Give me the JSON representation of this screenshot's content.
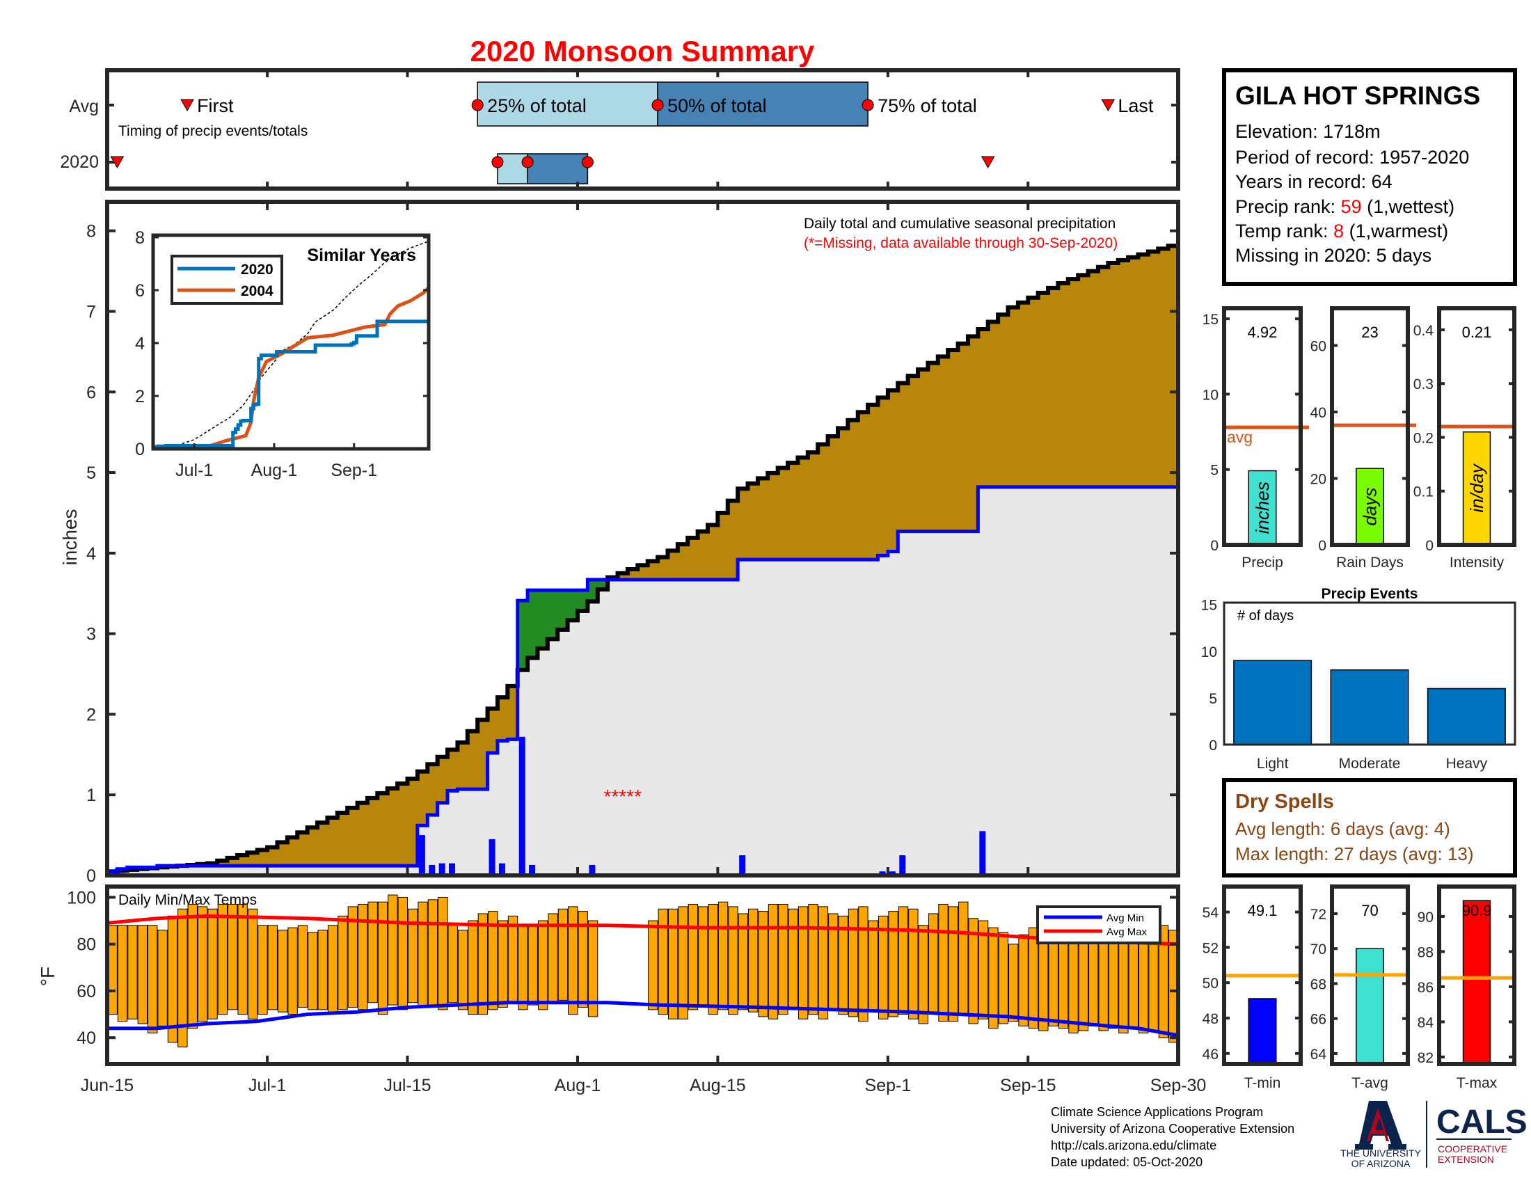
{
  "title": "2020 Monsoon Summary",
  "colors": {
    "title": "#FF0000",
    "avg_fill": "#B8860B",
    "green_fill": "#228B22",
    "grey_fill": "#E8E8E8",
    "obs_line": "#0000FF",
    "q1_box": "#ADD8E6",
    "q2_box": "#4682B4",
    "temp_bar": "#FFA500",
    "avg_line": "#D95319",
    "precip_events_bar": "#0072BD",
    "dry_spell_text": "#8B4513"
  },
  "timing": {
    "row_labels": [
      "Avg",
      "2020"
    ],
    "subtitle": "Timing of precip events/totals",
    "first_label": "First",
    "last_label": "Last",
    "q25_label": "25% of total",
    "q50_label": "50% of total",
    "q75_label": "75% of total",
    "avg": {
      "first": 8,
      "q25": 37,
      "q50": 55,
      "q75": 76,
      "last": 100
    },
    "year": {
      "first": 1,
      "q25": 39,
      "q50": 42,
      "q75": 48,
      "last": 88
    }
  },
  "station": {
    "name": "GILA HOT SPRINGS",
    "elevation": "Elevation: 1718m",
    "period": "Period of record: 1957-2020",
    "years": "Years in record: 64",
    "precip_rank_label": "Precip rank: ",
    "precip_rank": "59",
    "precip_rank_note": " (1,wettest)",
    "temp_rank_label": "Temp rank: ",
    "temp_rank": "8",
    "temp_rank_note": " (1,warmest)",
    "missing": "Missing in 2020: 5 days"
  },
  "chart_data": [
    {
      "type": "area",
      "name": "precip-main",
      "title": "Daily total and cumulative seasonal precipitation",
      "note": "(*=Missing, data available through 30-Sep-2020)",
      "ylabel": "inches",
      "ylim": [
        0,
        8.36
      ],
      "yticks": [
        0,
        1,
        2,
        3,
        4,
        5,
        6,
        7,
        8
      ],
      "x_unit": "days since Jun-15",
      "xlim": [
        0,
        107
      ],
      "xticks": [
        {
          "d": 0,
          "label": "Jun-15"
        },
        {
          "d": 16,
          "label": "Jul-1"
        },
        {
          "d": 30,
          "label": "Jul-15"
        },
        {
          "d": 47,
          "label": "Aug-1"
        },
        {
          "d": 61,
          "label": "Aug-15"
        },
        {
          "d": 78,
          "label": "Sep-1"
        },
        {
          "d": 92,
          "label": "Sep-15"
        },
        {
          "d": 107,
          "label": "Sep-30"
        }
      ],
      "daily_precip_2020": {
        "0": 0.05,
        "1": 0.03,
        "2": 0.02,
        "5": 0.02,
        "31": 0.5,
        "32": 0.13,
        "33": 0.15,
        "34": 0.15,
        "35": 0.02,
        "38": 0.45,
        "39": 0.15,
        "40": 0.02,
        "41": 1.72,
        "42": 0.13,
        "48": 0.13,
        "63": 0.25,
        "77": 0.05,
        "78": 0.05,
        "79": 0.25,
        "87": 0.55
      },
      "avg_cumulative": [
        [
          0,
          0.05
        ],
        [
          10,
          0.15
        ],
        [
          16,
          0.35
        ],
        [
          25,
          0.9
        ],
        [
          30,
          1.2
        ],
        [
          35,
          1.65
        ],
        [
          40,
          2.35
        ],
        [
          41,
          2.55
        ],
        [
          42,
          2.7
        ],
        [
          48,
          3.4
        ],
        [
          50,
          3.7
        ],
        [
          55,
          3.95
        ],
        [
          60,
          4.35
        ],
        [
          63,
          4.8
        ],
        [
          70,
          5.25
        ],
        [
          75,
          5.75
        ],
        [
          80,
          6.2
        ],
        [
          85,
          6.6
        ],
        [
          90,
          7.05
        ],
        [
          95,
          7.35
        ],
        [
          100,
          7.6
        ],
        [
          107,
          7.85
        ]
      ],
      "missing_marker": "*****",
      "missing_days": [
        49,
        50,
        51,
        52,
        53
      ]
    },
    {
      "type": "line",
      "name": "similar-years",
      "title": "Similar Years",
      "ylim": [
        0,
        8
      ],
      "yticks": [
        0,
        2,
        4,
        6,
        8
      ],
      "xticks": [
        {
          "d": 16,
          "label": "Jul-1"
        },
        {
          "d": 47,
          "label": "Aug-1"
        },
        {
          "d": 78,
          "label": "Sep-1"
        }
      ],
      "series": [
        {
          "name": "2020",
          "color": "#0072BD",
          "source": "2020 cumulative"
        },
        {
          "name": "2004",
          "color": "#D95319",
          "points": [
            [
              0,
              0
            ],
            [
              20,
              0.05
            ],
            [
              28,
              0.3
            ],
            [
              36,
              0.5
            ],
            [
              38,
              1.0
            ],
            [
              39,
              1.8
            ],
            [
              41,
              2.7
            ],
            [
              44,
              3.3
            ],
            [
              50,
              3.6
            ],
            [
              55,
              3.9
            ],
            [
              60,
              4.2
            ],
            [
              70,
              4.3
            ],
            [
              78,
              4.5
            ],
            [
              82,
              4.6
            ],
            [
              90,
              4.7
            ],
            [
              92,
              5.1
            ],
            [
              95,
              5.4
            ],
            [
              100,
              5.6
            ],
            [
              105,
              5.9
            ],
            [
              107,
              6.1
            ]
          ]
        },
        {
          "name": "avg",
          "color": "#000000",
          "dashed": true,
          "source": "avg cumulative"
        }
      ]
    },
    {
      "type": "bar",
      "name": "daily-temps",
      "title": "Daily Min/Max Temps",
      "ylabel": "°F",
      "ylim": [
        28.75,
        104.6
      ],
      "yticks": [
        40,
        60,
        80,
        100
      ],
      "max": [
        88,
        88,
        88,
        88,
        88,
        86,
        92,
        95,
        97,
        96,
        95,
        97,
        97,
        97,
        95,
        88,
        88,
        86,
        87,
        88,
        85,
        86,
        88,
        92,
        96,
        97,
        98,
        98,
        101,
        100,
        95,
        98,
        99,
        100,
        88,
        86,
        90,
        93,
        94,
        90,
        92,
        88,
        88,
        90,
        93,
        95,
        96,
        94,
        90,
        null,
        null,
        null,
        null,
        null,
        90,
        95,
        95,
        96,
        97,
        96,
        97,
        98,
        96,
        93,
        95,
        94,
        97,
        97,
        95,
        96,
        97,
        96,
        93,
        92,
        95,
        96,
        90,
        92,
        94,
        96,
        95,
        88,
        93,
        97,
        96,
        98,
        91,
        90,
        87,
        85,
        80,
        84,
        87,
        89,
        86,
        84,
        86,
        83,
        88,
        88,
        86,
        84,
        85,
        86,
        88,
        88,
        86,
        86
      ],
      "min": [
        50,
        47,
        48,
        46,
        42,
        45,
        38,
        36,
        44,
        47,
        48,
        50,
        52,
        50,
        48,
        50,
        52,
        51,
        50,
        53,
        52,
        52,
        50,
        52,
        53,
        52,
        55,
        50,
        54,
        52,
        55,
        53,
        54,
        52,
        55,
        52,
        50,
        50,
        52,
        53,
        55,
        52,
        54,
        52,
        55,
        56,
        50,
        53,
        49,
        null,
        null,
        null,
        null,
        null,
        52,
        50,
        48,
        48,
        52,
        53,
        50,
        52,
        50,
        52,
        51,
        49,
        48,
        50,
        52,
        48,
        50,
        48,
        52,
        50,
        49,
        47,
        52,
        48,
        49,
        50,
        48,
        46,
        50,
        47,
        47,
        50,
        46,
        48,
        44,
        46,
        47,
        45,
        44,
        43,
        45,
        44,
        42,
        43,
        45,
        43,
        44,
        42,
        44,
        42,
        43,
        40,
        38,
        34
      ],
      "legend": [
        {
          "name": "Avg Min",
          "color": "#0000FF",
          "points": [
            [
              0,
              44
            ],
            [
              5,
              44
            ],
            [
              10,
              46
            ],
            [
              15,
              47
            ],
            [
              20,
              50
            ],
            [
              25,
              51
            ],
            [
              30,
              53
            ],
            [
              40,
              55
            ],
            [
              50,
              55
            ],
            [
              55,
              54
            ],
            [
              65,
              53
            ],
            [
              80,
              51
            ],
            [
              90,
              49
            ],
            [
              95,
              47
            ],
            [
              100,
              45
            ],
            [
              103,
              44
            ],
            [
              107,
              41
            ]
          ]
        },
        {
          "name": "Avg Max",
          "color": "#FF0000",
          "points": [
            [
              0,
              89
            ],
            [
              5,
              91
            ],
            [
              10,
              92
            ],
            [
              20,
              91
            ],
            [
              30,
              89
            ],
            [
              40,
              88
            ],
            [
              50,
              88
            ],
            [
              60,
              87
            ],
            [
              70,
              87
            ],
            [
              80,
              86
            ],
            [
              85,
              85
            ],
            [
              95,
              82
            ],
            [
              100,
              81
            ],
            [
              107,
              80
            ]
          ]
        }
      ]
    },
    {
      "type": "bar",
      "name": "precip-total",
      "label": "Precip",
      "unit": "inches",
      "value": 4.92,
      "value_text": "4.92",
      "avg": 7.8,
      "avg_label": "avg",
      "ylim": [
        0,
        15.7
      ],
      "yticks": [
        0,
        5,
        10,
        15
      ],
      "color": "#40E0D0"
    },
    {
      "type": "bar",
      "name": "rain-days",
      "label": "Rain Days",
      "unit": "days",
      "value": 23,
      "value_text": "23",
      "avg": 36,
      "ylim": [
        0,
        71.2
      ],
      "yticks": [
        0,
        20,
        40,
        60
      ],
      "color": "#7CFC00"
    },
    {
      "type": "bar",
      "name": "intensity",
      "label": "Intensity",
      "unit": "in/day",
      "value": 0.21,
      "value_text": "0.21",
      "avg": 0.22,
      "ylim": [
        0,
        0.44
      ],
      "yticks": [
        0,
        0.1,
        0.2,
        0.3,
        0.4
      ],
      "color": "#FFD700"
    },
    {
      "type": "bar",
      "name": "precip-events",
      "title": "Precip Events",
      "ylabel": "# of days",
      "categories": [
        "Light",
        "Moderate",
        "Heavy"
      ],
      "values": [
        9,
        8,
        6
      ],
      "ylim": [
        0,
        15.2
      ],
      "yticks": [
        0,
        5,
        10,
        15
      ]
    },
    {
      "type": "bar",
      "name": "t-min",
      "label": "T-min",
      "value": 49.1,
      "value_text": "49.1",
      "avg": 50.4,
      "ylim": [
        45.4,
        55.44
      ],
      "yticks": [
        46,
        48,
        50,
        52,
        54
      ],
      "color": "#0000FF"
    },
    {
      "type": "bar",
      "name": "t-avg",
      "label": "T-avg",
      "value": 70,
      "value_text": "70",
      "avg": 68.5,
      "ylim": [
        63.4,
        73.55
      ],
      "yticks": [
        64,
        66,
        68,
        70,
        72
      ],
      "color": "#40E0D0"
    },
    {
      "type": "bar",
      "name": "t-max",
      "label": "T-max",
      "value": 90.9,
      "value_text": "90.9",
      "avg": 86.5,
      "ylim": [
        81.6,
        91.7
      ],
      "yticks": [
        82,
        84,
        86,
        88,
        90
      ],
      "color": "#FF0000"
    }
  ],
  "dry_spells": {
    "title": "Dry Spells",
    "avg_length": "Avg length: 6 days (avg: 4)",
    "max_length": "Max length: 27 days (avg: 13)"
  },
  "footer": {
    "lines": [
      "Climate Science Applications Program",
      "University of Arizona Cooperative Extension",
      "http://cals.arizona.edu/climate",
      " Date updated: 05-Oct-2020"
    ]
  },
  "logo": {
    "ua_line1": "THE UNIVERSITY",
    "ua_line2": "OF ARIZONA",
    "cals": "CALS",
    "cals_sub1": "COOPERATIVE",
    "cals_sub2": "EXTENSION"
  }
}
